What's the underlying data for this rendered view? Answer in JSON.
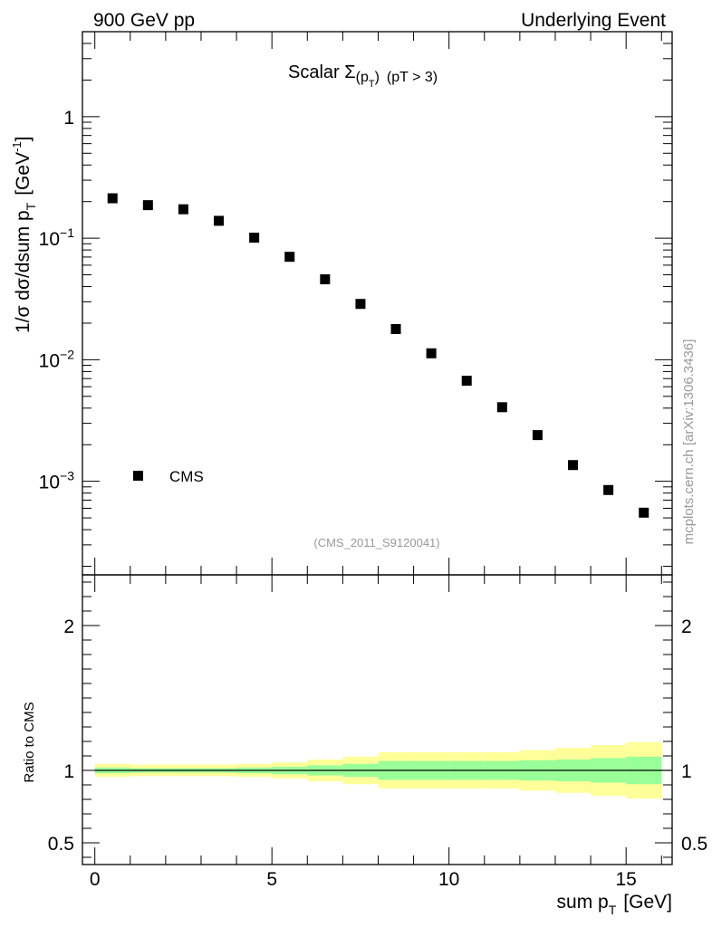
{
  "header": {
    "left": "900 GeV pp",
    "right": "Underlying Event"
  },
  "watermark": "mcplots.cern.ch [arXiv:1306.3436]",
  "chart_data": [
    {
      "type": "scatter",
      "panel": "main",
      "title_prefix": "Scalar ",
      "title_sigma": "Σ",
      "title_paren_open": "(p",
      "title_sub": "T",
      "title_paren_close": ")",
      "title_cut": "(pT >  3)",
      "ylabel_main": "1/σ dσ/dsum p",
      "ylabel_sub": "T",
      "ylabel_unit": "[GeV",
      "ylabel_sup": "-1",
      "ylabel_close": "]",
      "yscale": "log",
      "ylim": [
        0.00017,
        5
      ],
      "xlim": [
        -0.35,
        16.3
      ],
      "yticks": [
        {
          "value": 1,
          "label": "1",
          "exp": ""
        },
        {
          "value": 0.1,
          "label": "10",
          "exp": "−1"
        },
        {
          "value": 0.01,
          "label": "10",
          "exp": "−2"
        },
        {
          "value": 0.001,
          "label": "10",
          "exp": "−3"
        }
      ],
      "legend": {
        "position": "bottom-left",
        "entries": [
          "CMS"
        ]
      },
      "series": [
        {
          "name": "CMS",
          "color": "#000000",
          "x": [
            0.5,
            1.5,
            2.5,
            3.5,
            4.5,
            5.5,
            6.5,
            7.5,
            8.5,
            9.5,
            10.5,
            11.5,
            12.5,
            13.5,
            14.5,
            15.5
          ],
          "y": [
            0.213,
            0.187,
            0.173,
            0.139,
            0.101,
            0.0703,
            0.0459,
            0.0288,
            0.0179,
            0.0113,
            0.00672,
            0.00407,
            0.0024,
            0.00136,
            0.000848,
            0.000552
          ]
        }
      ],
      "annotation": "(CMS_2011_S9120041)"
    },
    {
      "type": "area",
      "panel": "ratio",
      "ylabel": "Ratio to CMS",
      "xlabel_main": "sum p",
      "xlabel_sub": "T",
      "xlabel_unit": "[GeV]",
      "ylim": [
        0.35,
        2.35
      ],
      "xlim": [
        -0.35,
        16.3
      ],
      "xticks": [
        0,
        5,
        10,
        15
      ],
      "yticks": [
        0.5,
        1,
        2
      ],
      "reference": 1,
      "bins": [
        0,
        1,
        2,
        3,
        4,
        5,
        6,
        7,
        8,
        9,
        10,
        11,
        12,
        13,
        14,
        15,
        16
      ],
      "band_inner": {
        "color": "#99ff99",
        "low": [
          0.98,
          0.985,
          0.985,
          0.985,
          0.98,
          0.975,
          0.965,
          0.955,
          0.935,
          0.935,
          0.935,
          0.935,
          0.93,
          0.925,
          0.915,
          0.905
        ],
        "high": [
          1.02,
          1.015,
          1.015,
          1.015,
          1.02,
          1.025,
          1.035,
          1.045,
          1.065,
          1.065,
          1.065,
          1.065,
          1.07,
          1.075,
          1.085,
          1.095
        ]
      },
      "band_outer": {
        "color": "#ffff99",
        "low": [
          0.955,
          0.96,
          0.96,
          0.96,
          0.955,
          0.945,
          0.925,
          0.905,
          0.875,
          0.875,
          0.875,
          0.875,
          0.86,
          0.845,
          0.825,
          0.805
        ],
        "high": [
          1.045,
          1.04,
          1.04,
          1.04,
          1.045,
          1.055,
          1.075,
          1.095,
          1.125,
          1.125,
          1.125,
          1.125,
          1.14,
          1.155,
          1.175,
          1.195
        ]
      }
    }
  ]
}
